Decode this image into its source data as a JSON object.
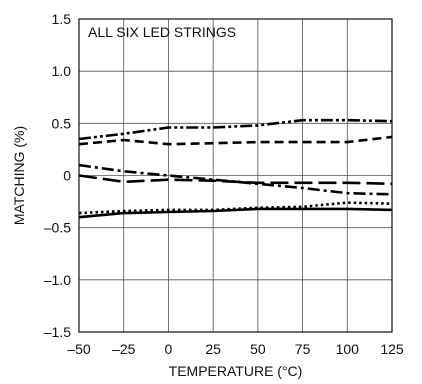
{
  "chart_data": {
    "type": "line",
    "title": "",
    "annotation": "ALL SIX LED STRINGS",
    "xlabel": "TEMPERATURE (°C)",
    "ylabel": "MATCHING (%)",
    "xlim": [
      -50,
      125
    ],
    "ylim": [
      -1.5,
      1.5
    ],
    "x_ticks": [
      -50,
      -25,
      0,
      25,
      50,
      75,
      100,
      125
    ],
    "x_tick_labels": [
      "–50",
      "–25",
      "0",
      "25",
      "50",
      "75",
      "100",
      "125"
    ],
    "y_ticks": [
      1.5,
      1.0,
      0.5,
      0,
      -0.5,
      -1.0,
      -1.5
    ],
    "y_tick_labels": [
      "1.5",
      "1.0",
      "0.5",
      "0",
      "–0.5",
      "–1.0",
      "–1.5"
    ],
    "grid": true,
    "legend": "none",
    "series": [
      {
        "style": "dash-dot-dot",
        "x": [
          -50,
          -25,
          0,
          25,
          50,
          75,
          100,
          125
        ],
        "y": [
          0.35,
          0.4,
          0.46,
          0.46,
          0.48,
          0.53,
          0.53,
          0.52
        ]
      },
      {
        "style": "dashed",
        "x": [
          -50,
          -25,
          0,
          25,
          50,
          75,
          100,
          125
        ],
        "y": [
          0.3,
          0.34,
          0.3,
          0.31,
          0.32,
          0.32,
          0.32,
          0.37
        ]
      },
      {
        "style": "dash-dot",
        "x": [
          -50,
          -25,
          0,
          25,
          50,
          75,
          100,
          125
        ],
        "y": [
          0.1,
          0.04,
          0.0,
          -0.04,
          -0.08,
          -0.12,
          -0.17,
          -0.18
        ]
      },
      {
        "style": "long-dash",
        "x": [
          -50,
          -25,
          0,
          25,
          50,
          75,
          100,
          125
        ],
        "y": [
          0.0,
          -0.06,
          -0.04,
          -0.05,
          -0.07,
          -0.07,
          -0.07,
          -0.08
        ]
      },
      {
        "style": "dotted",
        "x": [
          -50,
          -25,
          0,
          25,
          50,
          75,
          100,
          125
        ],
        "y": [
          -0.36,
          -0.34,
          -0.33,
          -0.33,
          -0.31,
          -0.3,
          -0.26,
          -0.27
        ]
      },
      {
        "style": "solid",
        "x": [
          -50,
          -25,
          0,
          25,
          50,
          75,
          100,
          125
        ],
        "y": [
          -0.4,
          -0.36,
          -0.35,
          -0.34,
          -0.32,
          -0.32,
          -0.32,
          -0.33
        ]
      }
    ]
  }
}
